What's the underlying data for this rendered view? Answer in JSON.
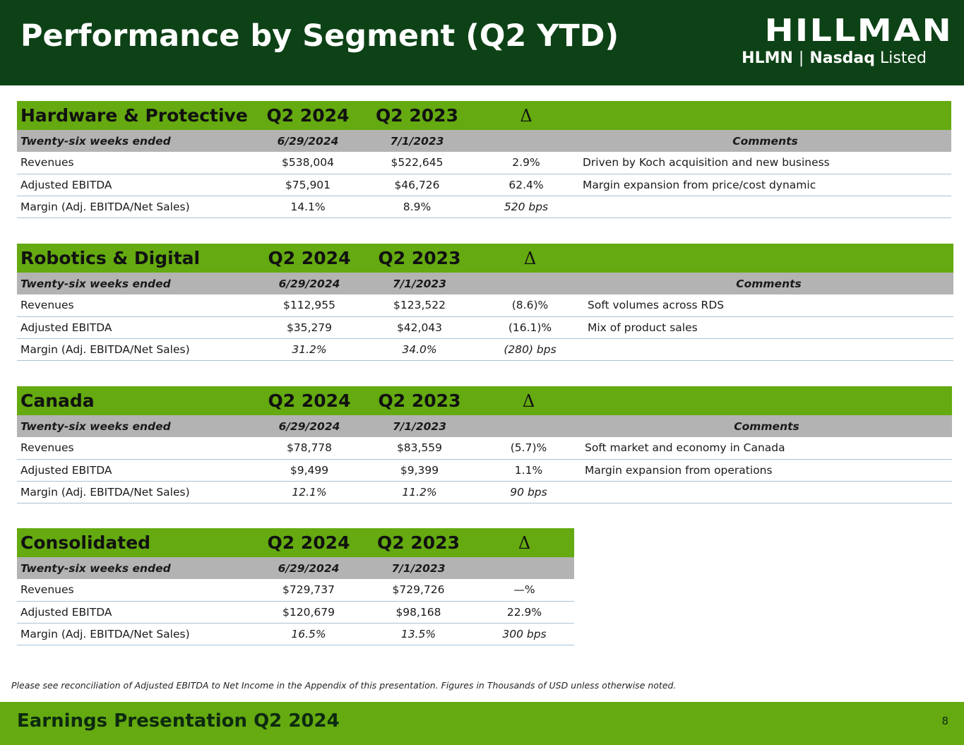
{
  "title": "Performance by Segment (Q2 YTD)",
  "logo": {
    "word": "HILLMAN",
    "ticker": "HLMN",
    "separator": "|",
    "exchange": "Nasdaq",
    "listed": "Listed"
  },
  "segments": [
    {
      "name": "Hardware & Protective",
      "col1": "Q2 2024",
      "col2": "Q2 2023",
      "delta": "Δ",
      "period_label": "Twenty-six weeks ended",
      "date1": "6/29/2024",
      "date2": "7/1/2023",
      "comments_header": "Comments",
      "rows": [
        {
          "label": "Revenues",
          "v1": "$538,004",
          "v2": "$522,645",
          "d": "2.9%",
          "comment": "Driven by Koch acquisition and new business"
        },
        {
          "label": "Adjusted EBITDA",
          "v1": "$75,901",
          "v2": "$46,726",
          "d": "62.4%",
          "comment": "Margin expansion from price/cost dynamic"
        },
        {
          "label": "Margin (Adj. EBITDA/Net Sales)",
          "v1": "14.1%",
          "v2": "8.9%",
          "d": "520 bps",
          "comment": ""
        }
      ]
    },
    {
      "name": "Robotics & Digital",
      "col1": "Q2 2024",
      "col2": "Q2 2023",
      "delta": "Δ",
      "period_label": "Twenty-six weeks ended",
      "date1": "6/29/2024",
      "date2": "7/1/2023",
      "comments_header": "Comments",
      "rows": [
        {
          "label": "Revenues",
          "v1": "$112,955",
          "v2": "$123,522",
          "d": "(8.6)%",
          "comment": "Soft volumes across RDS"
        },
        {
          "label": "Adjusted EBITDA",
          "v1": "$35,279",
          "v2": "$42,043",
          "d": "(16.1)%",
          "comment": "Mix of product sales"
        },
        {
          "label": "Margin (Adj. EBITDA/Net Sales)",
          "v1": "31.2%",
          "v2": "34.0%",
          "d": "(280) bps",
          "comment": ""
        }
      ]
    },
    {
      "name": "Canada",
      "col1": "Q2 2024",
      "col2": "Q2 2023",
      "delta": "Δ",
      "period_label": "Twenty-six weeks ended",
      "date1": "6/29/2024",
      "date2": "7/1/2023",
      "comments_header": "Comments",
      "rows": [
        {
          "label": "Revenues",
          "v1": "$78,778",
          "v2": "$83,559",
          "d": "(5.7)%",
          "comment": "Soft market and economy in Canada"
        },
        {
          "label": "Adjusted EBITDA",
          "v1": "$9,499",
          "v2": "$9,399",
          "d": "1.1%",
          "comment": "Margin expansion from operations"
        },
        {
          "label": "Margin (Adj. EBITDA/Net Sales)",
          "v1": "12.1%",
          "v2": "11.2%",
          "d": "90 bps",
          "comment": ""
        }
      ]
    },
    {
      "name": "Consolidated",
      "col1": "Q2 2024",
      "col2": "Q2 2023",
      "delta": "Δ",
      "period_label": "Twenty-six weeks ended",
      "date1": "6/29/2024",
      "date2": "7/1/2023",
      "rows": [
        {
          "label": "Revenues",
          "v1": "$729,737",
          "v2": "$729,726",
          "d": "—%"
        },
        {
          "label": "Adjusted EBITDA",
          "v1": "$120,679",
          "v2": "$98,168",
          "d": "22.9%"
        },
        {
          "label": "Margin (Adj. EBITDA/Net Sales)",
          "v1": "16.5%",
          "v2": "13.5%",
          "d": "300 bps"
        }
      ]
    }
  ],
  "footnote": "Please see reconciliation of Adjusted EBITDA to Net Income in the Appendix of this presentation. Figures in Thousands of USD unless otherwise noted.",
  "footer": {
    "title": "Earnings Presentation Q2 2024",
    "page": "8"
  }
}
